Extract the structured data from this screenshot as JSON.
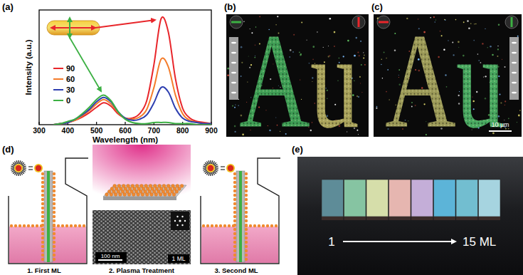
{
  "chart_data": {
    "type": "line",
    "title": "(a)",
    "x_label": "Wavelength (nm)",
    "y_label": "Intensity (a.u.)",
    "x": [
      350,
      375,
      400,
      425,
      450,
      475,
      500,
      525,
      550,
      575,
      600,
      625,
      650,
      675,
      700,
      725,
      750,
      775,
      800,
      825,
      850,
      875,
      900
    ],
    "series": [
      {
        "name": "90",
        "color": "#e8262b",
        "values": [
          0,
          0.01,
          0.02,
          0.04,
          0.07,
          0.11,
          0.16,
          0.2,
          0.17,
          0.1,
          0.06,
          0.06,
          0.1,
          0.22,
          0.55,
          0.97,
          0.85,
          0.42,
          0.15,
          0.06,
          0.03,
          0.02,
          0.01
        ]
      },
      {
        "name": "60",
        "color": "#f47c2a",
        "values": [
          0,
          0.01,
          0.02,
          0.04,
          0.08,
          0.13,
          0.19,
          0.23,
          0.19,
          0.11,
          0.06,
          0.05,
          0.07,
          0.14,
          0.34,
          0.6,
          0.53,
          0.27,
          0.1,
          0.04,
          0.02,
          0.01,
          0.01
        ]
      },
      {
        "name": "30",
        "color": "#2e3fb0",
        "values": [
          0,
          0.01,
          0.02,
          0.05,
          0.09,
          0.14,
          0.21,
          0.25,
          0.21,
          0.12,
          0.06,
          0.04,
          0.05,
          0.09,
          0.2,
          0.34,
          0.3,
          0.15,
          0.06,
          0.03,
          0.02,
          0.01,
          0.01
        ]
      },
      {
        "name": "0",
        "color": "#3cb043",
        "values": [
          0,
          0.01,
          0.03,
          0.05,
          0.1,
          0.16,
          0.23,
          0.27,
          0.22,
          0.12,
          0.05,
          0.02,
          0.01,
          0.01,
          0.02,
          0.02,
          0.02,
          0.01,
          0.01,
          0.01,
          0,
          0,
          0
        ]
      }
    ],
    "xlim": [
      300,
      900
    ],
    "xticks": [
      300,
      400,
      500,
      600,
      700,
      800,
      900
    ],
    "ylim": [
      0,
      1.05
    ],
    "tick_labels": "x",
    "legend": "left"
  },
  "panel_b": {
    "label": "(b)",
    "text": "Au"
  },
  "panel_c": {
    "label": "(c)",
    "text": "Au",
    "scale_bar": "10 µm"
  },
  "panel_d": {
    "label": "(d)",
    "steps": [
      "1. First ML",
      "2. Plasma Treatment",
      "3. Second ML"
    ],
    "scale_bar": "100 nm",
    "layers": "1 ML"
  },
  "panel_e": {
    "label": "(e)",
    "start": "1",
    "end": "15 ML"
  }
}
